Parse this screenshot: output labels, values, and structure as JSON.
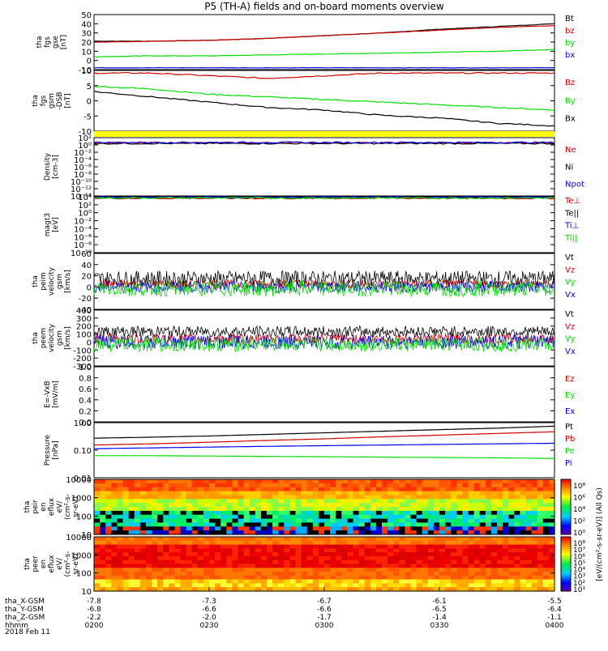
{
  "title": "P5 (TH-A) fields and on-board moments overview",
  "date_label": "2018 Feb 11",
  "colors": {
    "black": "#000000",
    "red": "#cc0000",
    "green": "#00dd00",
    "blue": "#0000ee",
    "yellow": "#ffff00"
  },
  "chart_data": [
    {
      "type": "line",
      "id": "fgs_gse",
      "ylabel": [
        "tha",
        "fgs",
        "gse",
        "[nT]"
      ],
      "yticks": [
        "50",
        "40",
        "30",
        "20",
        "10",
        "0",
        "-10"
      ],
      "ylim": [
        -10,
        50
      ],
      "legend": [
        {
          "name": "Bt",
          "color": "black"
        },
        {
          "name": "bz",
          "color": "red"
        },
        {
          "name": "by",
          "color": "green"
        },
        {
          "name": "bx",
          "color": "blue"
        }
      ],
      "series": [
        {
          "name": "Bt",
          "color": "black",
          "values": [
            21,
            21,
            22,
            24,
            27,
            30,
            34,
            37,
            40
          ]
        },
        {
          "name": "bz",
          "color": "red",
          "values": [
            20,
            21,
            22,
            24,
            27,
            30,
            33,
            36,
            38
          ]
        },
        {
          "name": "by",
          "color": "green",
          "values": [
            4,
            5,
            5,
            6,
            7,
            8,
            9,
            10,
            12
          ]
        },
        {
          "name": "bx",
          "color": "blue",
          "values": [
            -8,
            -8,
            -8,
            -8,
            -8,
            -8,
            -8,
            -8,
            -8
          ]
        }
      ]
    },
    {
      "type": "line",
      "id": "fgs_gsm",
      "ylabel": [
        "tha",
        "fgs",
        "gsm",
        "-DSB",
        "[nT]"
      ],
      "yticks": [
        "10",
        "5",
        "0",
        "-5",
        "-10"
      ],
      "ylim": [
        -12,
        11
      ],
      "legend": [
        {
          "name": "Bz",
          "color": "red"
        },
        {
          "name": "By",
          "color": "green"
        },
        {
          "name": "Bx",
          "color": "black"
        }
      ],
      "series": [
        {
          "name": "Bz",
          "color": "red",
          "values": [
            10,
            10,
            9,
            8,
            9,
            10,
            10,
            10,
            10
          ]
        },
        {
          "name": "By",
          "color": "green",
          "values": [
            5,
            4,
            2,
            1,
            0,
            -1,
            -2,
            -3,
            -4
          ]
        },
        {
          "name": "Bx",
          "color": "black",
          "values": [
            3,
            1,
            -1,
            -3,
            -4,
            -6,
            -7,
            -9,
            -10
          ]
        }
      ]
    },
    {
      "type": "line",
      "id": "density",
      "ylabel": [
        "Density",
        "[cm-3]"
      ],
      "yticks": [
        "10²",
        "10⁰",
        "10⁻²",
        "10⁻⁴",
        "10⁻⁶",
        "10⁻⁸",
        "10⁻¹⁰",
        "10⁻¹²",
        "10⁻¹⁴"
      ],
      "ylim": [
        -15,
        2
      ],
      "legend": [
        {
          "name": "Ne",
          "color": "red"
        },
        {
          "name": "Ni",
          "color": "black"
        },
        {
          "name": "Npot",
          "color": "blue"
        }
      ],
      "series": [
        {
          "name": "Ne",
          "color": "red",
          "values": [
            0.5,
            0.5,
            0.5,
            0.5,
            0.5,
            0.5,
            0.5,
            0.5,
            0.5
          ]
        },
        {
          "name": "Ni",
          "color": "black",
          "values": [
            0.3,
            0.3,
            0.3,
            0.3,
            0.3,
            0.3,
            0.3,
            0.3,
            0.3
          ]
        },
        {
          "name": "Npot",
          "color": "blue",
          "values": [
            0.6,
            0.6,
            0.6,
            0.6,
            0.6,
            0.6,
            0.6,
            0.6,
            0.6
          ]
        }
      ]
    },
    {
      "type": "line",
      "id": "magt3",
      "ylabel": [
        "magt3",
        "[eV]"
      ],
      "yticks": [
        "10⁴",
        "10²",
        "10⁰",
        "10⁻²",
        "10⁻⁴",
        "10⁻⁶",
        "10⁻⁸",
        "10⁻¹⁰"
      ],
      "ylim": [
        -11,
        4
      ],
      "legend": [
        {
          "name": "Te⊥",
          "color": "red"
        },
        {
          "name": "Te||",
          "color": "black"
        },
        {
          "name": "Ti⊥",
          "color": "blue"
        },
        {
          "name": "Ti||",
          "color": "green"
        }
      ],
      "series": [
        {
          "name": "Te⊥",
          "color": "red",
          "values": [
            3.6,
            3.6,
            3.6,
            3.6,
            3.6,
            3.6,
            3.6,
            3.6,
            3.6
          ]
        },
        {
          "name": "Te||",
          "color": "black",
          "values": [
            3.8,
            3.8,
            3.8,
            3.8,
            3.8,
            3.8,
            3.8,
            3.8,
            3.8
          ]
        },
        {
          "name": "Ti⊥",
          "color": "blue",
          "values": [
            3.9,
            3.9,
            3.9,
            3.9,
            3.9,
            3.9,
            3.9,
            3.9,
            3.9
          ]
        },
        {
          "name": "Ti||",
          "color": "green",
          "values": [
            3.7,
            3.7,
            3.7,
            3.7,
            3.7,
            3.7,
            3.7,
            3.7,
            3.7
          ]
        }
      ]
    },
    {
      "type": "line",
      "id": "peim_velocity",
      "ylabel": [
        "tha",
        "peim",
        "velocity",
        "gsm",
        "[km/s]"
      ],
      "yticks": [
        "60",
        "40",
        "20",
        "0",
        "-20",
        "-40"
      ],
      "ylim": [
        -40,
        60
      ],
      "legend": [
        {
          "name": "Vt",
          "color": "black"
        },
        {
          "name": "Vz",
          "color": "red"
        },
        {
          "name": "Vy",
          "color": "green"
        },
        {
          "name": "Vx",
          "color": "blue"
        }
      ],
      "series": [
        {
          "name": "Vt",
          "color": "black",
          "mean": 15,
          "amp": 14
        },
        {
          "name": "Vz",
          "color": "red",
          "mean": 5,
          "amp": 8
        },
        {
          "name": "Vx",
          "color": "blue",
          "mean": 0,
          "amp": 10
        },
        {
          "name": "Vy",
          "color": "green",
          "mean": -3,
          "amp": 14
        }
      ]
    },
    {
      "type": "line",
      "id": "peem_velocity",
      "ylabel": [
        "tha",
        "peem",
        "velocity",
        "gsm",
        "[km/s]"
      ],
      "yticks": [
        "400",
        "300",
        "200",
        "100",
        "0",
        "-100",
        "-200",
        "-300"
      ],
      "ylim": [
        -300,
        400
      ],
      "legend": [
        {
          "name": "Vt",
          "color": "black"
        },
        {
          "name": "Vz",
          "color": "red"
        },
        {
          "name": "Vy",
          "color": "green"
        },
        {
          "name": "Vx",
          "color": "blue"
        }
      ],
      "series": [
        {
          "name": "Vt",
          "color": "black",
          "mean": 130,
          "amp": 70
        },
        {
          "name": "Vz",
          "color": "red",
          "mean": 40,
          "amp": 60
        },
        {
          "name": "Vx",
          "color": "blue",
          "mean": 0,
          "amp": 90
        },
        {
          "name": "Vy",
          "color": "green",
          "mean": -30,
          "amp": 90
        }
      ]
    },
    {
      "type": "line",
      "id": "efield",
      "ylabel": [
        "E=-VxB",
        "[mV/m]"
      ],
      "yticks": [
        "1.0",
        "0.8",
        "0.6",
        "0.4",
        "0.2",
        "0.0"
      ],
      "ylim": [
        0,
        1
      ],
      "legend": [
        {
          "name": "Ez",
          "color": "red"
        },
        {
          "name": "Ey",
          "color": "green"
        },
        {
          "name": "Ex",
          "color": "blue"
        }
      ],
      "series": []
    },
    {
      "type": "line",
      "id": "pressure",
      "ylabel": [
        "Pressure",
        "[nPa]"
      ],
      "yticks": [
        "1.00",
        "0.10",
        "0.01"
      ],
      "ylim": [
        0.01,
        1.3
      ],
      "log": true,
      "legend": [
        {
          "name": "Pt",
          "color": "black"
        },
        {
          "name": "Pb",
          "color": "red"
        },
        {
          "name": "Pe",
          "color": "green"
        },
        {
          "name": "Pi",
          "color": "blue"
        }
      ],
      "series": [
        {
          "name": "Pt",
          "color": "black",
          "values": [
            0.33,
            0.36,
            0.4,
            0.46,
            0.53,
            0.61,
            0.7,
            0.8,
            0.95
          ]
        },
        {
          "name": "Pb",
          "color": "red",
          "values": [
            0.18,
            0.2,
            0.23,
            0.27,
            0.31,
            0.37,
            0.43,
            0.5,
            0.58
          ]
        },
        {
          "name": "Pi",
          "color": "blue",
          "values": [
            0.13,
            0.14,
            0.15,
            0.16,
            0.17,
            0.18,
            0.19,
            0.2,
            0.21
          ]
        },
        {
          "name": "Pe",
          "color": "green",
          "values": [
            0.07,
            0.07,
            0.068,
            0.066,
            0.064,
            0.062,
            0.06,
            0.058,
            0.055
          ]
        }
      ]
    },
    {
      "type": "heatmap",
      "id": "peir_eflux",
      "ylabel": [
        "tha",
        "peir",
        "en",
        "eflux",
        "eV/",
        "(cm²-s-",
        "sr-eV)"
      ],
      "yticks": [
        "10000",
        "1000",
        "100",
        "10"
      ],
      "ylim": [
        5,
        25000
      ]
    },
    {
      "type": "heatmap",
      "id": "peer_eflux",
      "ylabel": [
        "tha",
        "peer",
        "en",
        "eflux",
        "eV/",
        "(cm²-s-",
        "sr-eV)"
      ],
      "yticks": [
        "10000",
        "1000",
        "100",
        "10"
      ],
      "ylim": [
        5,
        25000
      ]
    }
  ],
  "colorbars": [
    {
      "ticks": [
        "10⁸",
        "10⁶",
        "10⁴",
        "10²",
        "10⁰"
      ]
    },
    {
      "ticks": [
        "10⁸",
        "10⁷",
        "10⁶",
        "10⁵",
        "10⁴",
        "10³",
        "10²",
        "10¹"
      ]
    }
  ],
  "colorbar_label": "[eV/(cm²-s-sr-eV)] (All Qs)",
  "xaxis": {
    "rows": [
      {
        "label": "tha_X-GSM",
        "values": [
          "-7.8",
          "-7.3",
          "-6.7",
          "-6.1",
          "-5.5"
        ]
      },
      {
        "label": "tha_Y-GSM",
        "values": [
          "-6.8",
          "-6.6",
          "-6.6",
          "-6.5",
          "-6.4"
        ]
      },
      {
        "label": "tha_Z-GSM",
        "values": [
          "-2.2",
          "-2.0",
          "-1.7",
          "-1.4",
          "-1.1"
        ]
      },
      {
        "label": "hhmm",
        "values": [
          "0200",
          "0230",
          "0300",
          "0330",
          "0400"
        ]
      }
    ]
  }
}
